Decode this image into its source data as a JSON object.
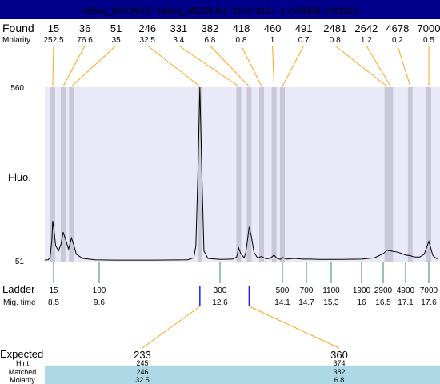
{
  "header": {
    "title": "refseq_MECR.F1 / refseq_MECR.R1 / OVC 318 / -1 / Well ID 1041353",
    "bg": "#00008b",
    "fg": "#ffffff"
  },
  "row_labels": {
    "found": "Found",
    "molarity": "Molarity",
    "fluo": "Fluo.",
    "ladder": "Ladder",
    "mig_time": "Mig. time",
    "expected": "Expected",
    "hint": "Hint",
    "matched": "Matched",
    "molarity_bottom": "Molarity"
  },
  "colors": {
    "plot_bg": "#e9e9f7",
    "band": "#c8c8d6",
    "orange": "#f5a623",
    "green": "#2e8b57",
    "blue": "#1a1aff",
    "trace": "#000000",
    "highlight_row": "#add8e6"
  },
  "chart_data": {
    "type": "line",
    "ylim": [
      51,
      560
    ],
    "ytick_labels": [
      "560",
      "51"
    ],
    "x_unit": "migration time",
    "found_peaks": [
      {
        "size": "15",
        "molarity": "252.5",
        "time": 8.45
      },
      {
        "size": "36",
        "molarity": "76.6",
        "time": 8.73
      },
      {
        "size": "51",
        "molarity": "35",
        "time": 8.93
      },
      {
        "size": "246",
        "molarity": "32.5",
        "time": 12.1
      },
      {
        "size": "331",
        "molarity": "3.4",
        "time": 13.05
      },
      {
        "size": "382",
        "molarity": "6.8",
        "time": 13.3
      },
      {
        "size": "418",
        "molarity": "0.8",
        "time": 13.6
      },
      {
        "size": "460",
        "molarity": "1",
        "time": 13.9
      },
      {
        "size": "491",
        "molarity": "0.7",
        "time": 14.1
      },
      {
        "size": "2481",
        "molarity": "0.8",
        "time": 16.6
      },
      {
        "size": "2642",
        "molarity": "1.2",
        "time": 16.7
      },
      {
        "size": "4678",
        "molarity": "0.2",
        "time": 17.2
      },
      {
        "size": "7000",
        "molarity": "0.5",
        "time": 17.6
      }
    ],
    "ladder": [
      {
        "size": "15",
        "time": "8.5"
      },
      {
        "size": "100",
        "time": "9.6"
      },
      {
        "size": "300",
        "time": "12.6"
      },
      {
        "size": "500",
        "time": "14.1"
      },
      {
        "size": "700",
        "time": "14.7"
      },
      {
        "size": "1100",
        "time": "15.3"
      },
      {
        "size": "1900",
        "time": "16"
      },
      {
        "size": "2900",
        "time": "16.5"
      },
      {
        "size": "4900",
        "time": "17.1"
      },
      {
        "size": "7000",
        "time": "17.6"
      }
    ],
    "trace": [
      [
        8.0,
        53
      ],
      [
        8.2,
        54
      ],
      [
        8.3,
        62
      ],
      [
        8.4,
        110
      ],
      [
        8.45,
        168
      ],
      [
        8.5,
        150
      ],
      [
        8.55,
        95
      ],
      [
        8.62,
        80
      ],
      [
        8.68,
        100
      ],
      [
        8.73,
        135
      ],
      [
        8.8,
        110
      ],
      [
        8.86,
        85
      ],
      [
        8.93,
        118
      ],
      [
        8.98,
        100
      ],
      [
        9.05,
        70
      ],
      [
        9.2,
        58
      ],
      [
        9.5,
        54
      ],
      [
        10,
        53
      ],
      [
        11,
        53
      ],
      [
        11.8,
        54
      ],
      [
        11.95,
        60
      ],
      [
        12.0,
        95
      ],
      [
        12.05,
        300
      ],
      [
        12.1,
        560
      ],
      [
        12.15,
        300
      ],
      [
        12.2,
        80
      ],
      [
        12.3,
        58
      ],
      [
        12.6,
        55
      ],
      [
        12.9,
        56
      ],
      [
        13.0,
        62
      ],
      [
        13.05,
        88
      ],
      [
        13.1,
        72
      ],
      [
        13.18,
        60
      ],
      [
        13.22,
        75
      ],
      [
        13.27,
        120
      ],
      [
        13.3,
        150
      ],
      [
        13.35,
        125
      ],
      [
        13.42,
        75
      ],
      [
        13.5,
        60
      ],
      [
        13.6,
        64
      ],
      [
        13.7,
        57
      ],
      [
        13.8,
        58
      ],
      [
        13.9,
        68
      ],
      [
        13.97,
        58
      ],
      [
        14.05,
        55
      ],
      [
        14.1,
        61
      ],
      [
        14.2,
        56
      ],
      [
        14.4,
        58
      ],
      [
        14.6,
        56
      ],
      [
        14.8,
        56
      ],
      [
        15.0,
        55
      ],
      [
        15.5,
        55
      ],
      [
        16.0,
        56
      ],
      [
        16.3,
        60
      ],
      [
        16.5,
        72
      ],
      [
        16.6,
        82
      ],
      [
        16.7,
        80
      ],
      [
        16.8,
        78
      ],
      [
        16.9,
        76
      ],
      [
        17.0,
        72
      ],
      [
        17.1,
        68
      ],
      [
        17.2,
        66
      ],
      [
        17.3,
        62
      ],
      [
        17.4,
        62
      ],
      [
        17.5,
        70
      ],
      [
        17.6,
        108
      ],
      [
        17.66,
        66
      ],
      [
        17.72,
        56
      ]
    ],
    "expected": [
      {
        "value": "233",
        "hint": "245",
        "matched": "246",
        "molarity": "32.5",
        "time": 12.1
      },
      {
        "value": "360",
        "hint": "374",
        "matched": "382",
        "molarity": "6.8",
        "time": 13.3
      }
    ]
  }
}
